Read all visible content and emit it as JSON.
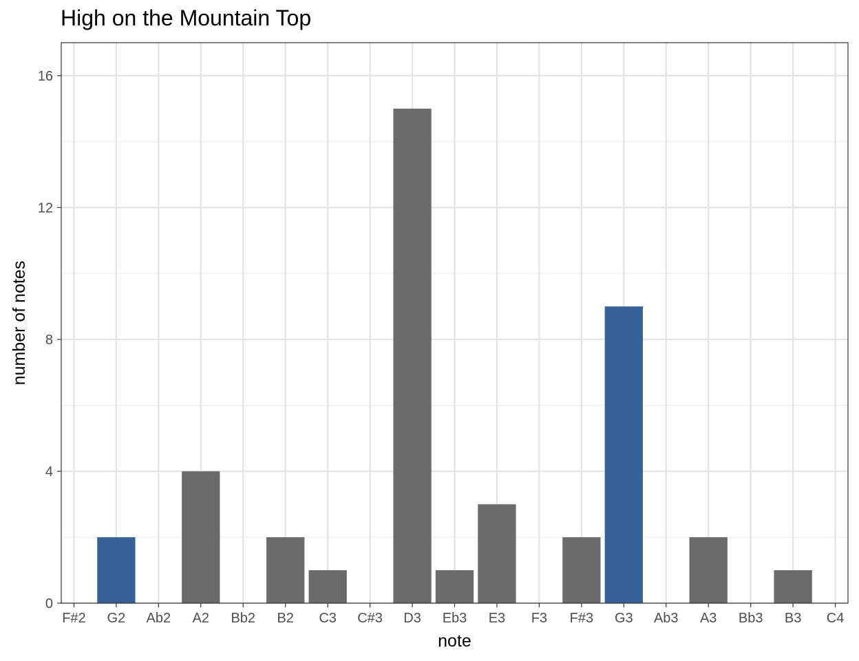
{
  "chart_data": {
    "type": "bar",
    "title": "High on the Mountain Top",
    "xlabel": "note",
    "ylabel": "number of notes",
    "categories": [
      "F#2",
      "G2",
      "Ab2",
      "A2",
      "Bb2",
      "B2",
      "C3",
      "C#3",
      "D3",
      "Eb3",
      "E3",
      "F3",
      "F#3",
      "G3",
      "Ab3",
      "A3",
      "Bb3",
      "B3",
      "C4"
    ],
    "values": [
      0,
      2,
      0,
      4,
      0,
      2,
      1,
      0,
      15,
      1,
      3,
      0,
      2,
      9,
      0,
      2,
      0,
      1,
      0
    ],
    "highlighted": [
      "G2",
      "G3"
    ],
    "colors": {
      "default": "#6b6b6b",
      "highlight": "#376299"
    },
    "ylim": [
      0,
      17
    ],
    "yticks": [
      0,
      4,
      8,
      12,
      16
    ],
    "yticks_labels": [
      "0",
      "4",
      "8",
      "12",
      "16"
    ],
    "grid": true,
    "legend": "none"
  }
}
